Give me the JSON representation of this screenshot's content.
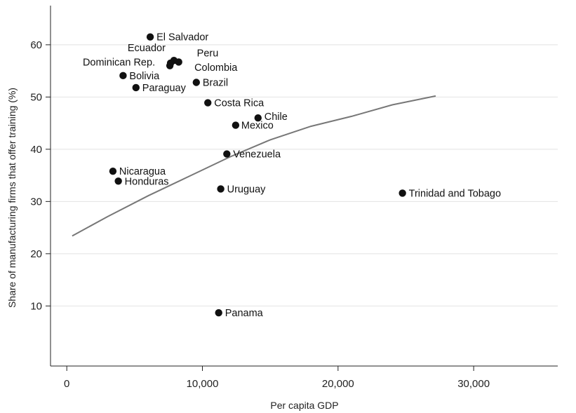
{
  "chart_data": {
    "type": "scatter",
    "xlabel": "Per capita GDP",
    "ylabel": "Share of manufacturing firms that offer training (%)",
    "xlim": [
      -1200,
      36200
    ],
    "ylim": [
      -1.5,
      67.5
    ],
    "x_ticks": [
      0,
      10000,
      20000,
      30000
    ],
    "x_tick_labels": [
      "0",
      "10,000",
      "20,000",
      "30,000"
    ],
    "y_ticks": [
      10,
      20,
      30,
      40,
      50,
      60
    ],
    "y_tick_labels": [
      "10",
      "20",
      "30",
      "40",
      "50",
      "60"
    ],
    "grid": "horizontal",
    "legend": "none",
    "points": [
      {
        "label": "El Salvador",
        "x": 6150,
        "y": 61.5
      },
      {
        "label": "Ecuador",
        "x": 7900,
        "y": 57.0
      },
      {
        "label": "Peru",
        "x": 8250,
        "y": 56.7
      },
      {
        "label": "Colombia",
        "x": 7650,
        "y": 56.5
      },
      {
        "label": "Dominican Rep.",
        "x": 7600,
        "y": 56.0
      },
      {
        "label": "Bolivia",
        "x": 4150,
        "y": 54.1
      },
      {
        "label": "Brazil",
        "x": 9550,
        "y": 52.8
      },
      {
        "label": "Paraguay",
        "x": 5100,
        "y": 51.8
      },
      {
        "label": "Costa Rica",
        "x": 10400,
        "y": 48.9
      },
      {
        "label": "Chile",
        "x": 14100,
        "y": 46.0
      },
      {
        "label": "Mexico",
        "x": 12450,
        "y": 44.6
      },
      {
        "label": "Venezuela",
        "x": 11800,
        "y": 39.1
      },
      {
        "label": "Nicaragua",
        "x": 3400,
        "y": 35.8
      },
      {
        "label": "Honduras",
        "x": 3800,
        "y": 33.9
      },
      {
        "label": "Uruguay",
        "x": 11350,
        "y": 32.4
      },
      {
        "label": "Trinidad and Tobago",
        "x": 24750,
        "y": 31.6
      },
      {
        "label": "Panama",
        "x": 11200,
        "y": 8.7
      }
    ],
    "fit_line": {
      "x": [
        400,
        3000,
        6000,
        9000,
        12000,
        15000,
        18000,
        21000,
        24000,
        27200
      ],
      "y": [
        23.4,
        27.1,
        31.1,
        34.8,
        38.5,
        41.8,
        44.4,
        46.3,
        48.5,
        50.2
      ]
    },
    "colors": {
      "points": "#111111",
      "fit_line": "#777777",
      "grid": "#e2e2e2",
      "axis": "#222222"
    }
  }
}
